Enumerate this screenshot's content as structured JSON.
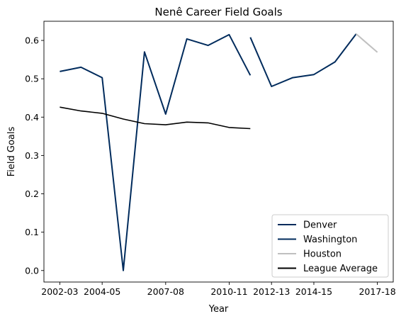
{
  "chart_data": {
    "type": "line",
    "title": "Nenê Career Field Goals",
    "xlabel": "Year",
    "ylabel": "Field Goals",
    "x_ticks": [
      "2002-03",
      "2004-05",
      "2007-08",
      "2010-11",
      "2012-13",
      "2014-15",
      "2017-18"
    ],
    "y_ticks": [
      "0.0",
      "0.1",
      "0.2",
      "0.3",
      "0.4",
      "0.5",
      "0.6"
    ],
    "ylim": [
      -0.03,
      0.65
    ],
    "legend_position": "lower-right",
    "series": [
      {
        "name": "Denver",
        "color": "#002B5C",
        "x": [
          "2002-03",
          "2003-04",
          "2004-05",
          "2005-06",
          "2006-07",
          "2007-08",
          "2008-09",
          "2009-10",
          "2010-11",
          "2011-12"
        ],
        "y": [
          0.519,
          0.53,
          0.503,
          0.0,
          0.57,
          0.408,
          0.604,
          0.587,
          0.615,
          0.509
        ]
      },
      {
        "name": "Washington",
        "color": "#002B5C",
        "x": [
          "2011-12",
          "2012-13",
          "2013-14",
          "2014-15",
          "2015-16",
          "2016-17"
        ],
        "y": [
          0.608,
          0.48,
          0.503,
          0.511,
          0.544,
          0.617
        ]
      },
      {
        "name": "Houston",
        "color": "#C0C0C0",
        "x": [
          "2016-17",
          "2017-18"
        ],
        "y": [
          0.617,
          0.569
        ]
      },
      {
        "name": "League Average",
        "color": "#000000",
        "x": [
          "2002-03",
          "2003-04",
          "2004-05",
          "2005-06",
          "2006-07",
          "2007-08",
          "2008-09",
          "2009-10",
          "2010-11",
          "2011-12"
        ],
        "y": [
          0.426,
          0.416,
          0.41,
          0.395,
          0.383,
          0.38,
          0.387,
          0.385,
          0.373,
          0.37
        ]
      }
    ]
  }
}
